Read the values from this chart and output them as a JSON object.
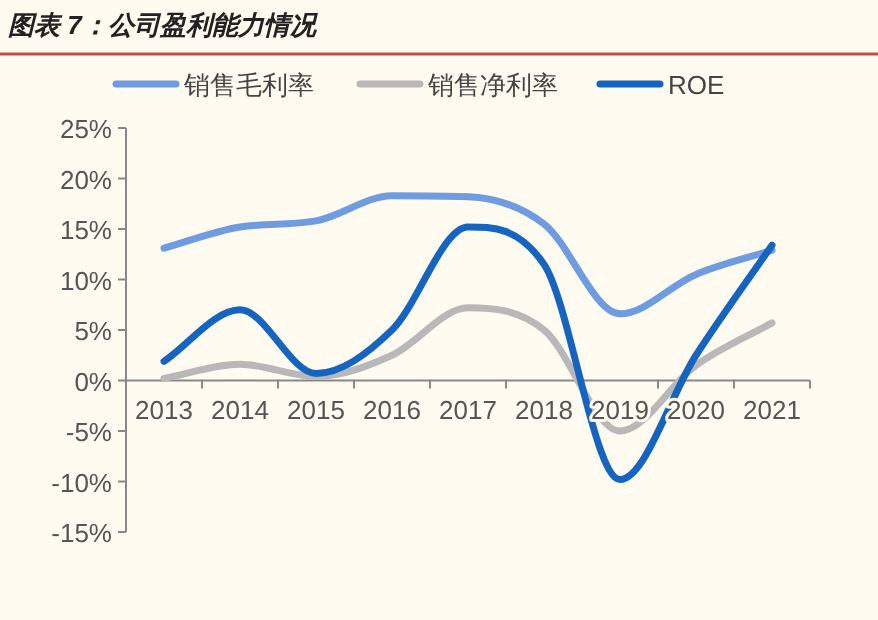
{
  "chart_data": {
    "type": "line",
    "title": "图表 7：公司盈利能力情况",
    "categories": [
      "2013",
      "2014",
      "2015",
      "2016",
      "2017",
      "2018",
      "2019",
      "2020",
      "2021"
    ],
    "series": [
      {
        "name": "销售毛利率",
        "color": "#6f9be0",
        "values": [
          13.1,
          15.2,
          15.8,
          18.3,
          18.2,
          15.5,
          6.6,
          10.5,
          12.9
        ]
      },
      {
        "name": "销售净利率",
        "color": "#b8b8b8",
        "values": [
          0.2,
          1.6,
          0.4,
          2.5,
          7.2,
          5.0,
          -5.0,
          1.5,
          5.7
        ]
      },
      {
        "name": "ROE",
        "color": "#1565c0",
        "values": [
          1.9,
          7.0,
          0.7,
          5.0,
          15.2,
          11.5,
          -9.8,
          2.5,
          13.4
        ]
      }
    ],
    "ylim": [
      -15,
      25
    ],
    "yticks": [
      {
        "value": -15,
        "label": "-15%"
      },
      {
        "value": -10,
        "label": "-10%"
      },
      {
        "value": -5,
        "label": "-5%"
      },
      {
        "value": 0,
        "label": "0%"
      },
      {
        "value": 5,
        "label": "5%"
      },
      {
        "value": 10,
        "label": "10%"
      },
      {
        "value": 15,
        "label": "15%"
      },
      {
        "value": 20,
        "label": "20%"
      },
      {
        "value": 25,
        "label": "25%"
      }
    ],
    "legend": "top",
    "grid": false,
    "marker": "none",
    "line_style": "solid"
  }
}
